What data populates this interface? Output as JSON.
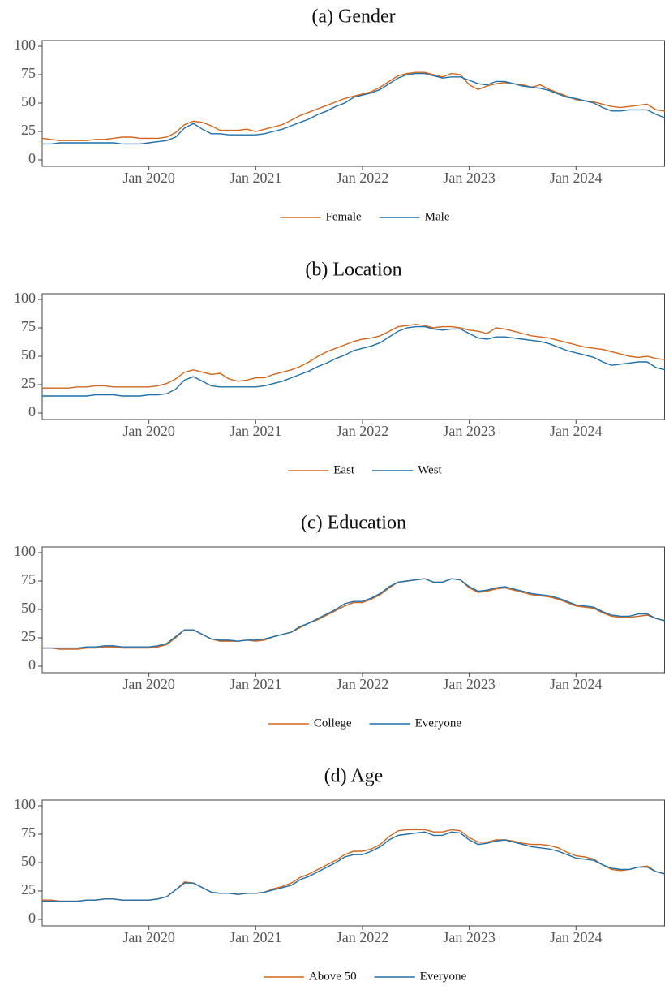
{
  "chart_data": [
    {
      "type": "line",
      "title": "(a) Gender",
      "x": [
        "2019-01",
        "2019-02",
        "2019-03",
        "2019-04",
        "2019-05",
        "2019-06",
        "2019-07",
        "2019-08",
        "2019-09",
        "2019-10",
        "2019-11",
        "2019-12",
        "2020-01",
        "2020-02",
        "2020-03",
        "2020-04",
        "2020-05",
        "2020-06",
        "2020-07",
        "2020-08",
        "2020-09",
        "2020-10",
        "2020-11",
        "2020-12",
        "2021-01",
        "2021-02",
        "2021-03",
        "2021-04",
        "2021-05",
        "2021-06",
        "2021-07",
        "2021-08",
        "2021-09",
        "2021-10",
        "2021-11",
        "2021-12",
        "2022-01",
        "2022-02",
        "2022-03",
        "2022-04",
        "2022-05",
        "2022-06",
        "2022-07",
        "2022-08",
        "2022-09",
        "2022-10",
        "2022-11",
        "2022-12",
        "2023-01",
        "2023-02",
        "2023-03",
        "2023-04",
        "2023-05",
        "2023-06",
        "2023-07",
        "2023-08",
        "2023-09",
        "2023-10",
        "2023-11",
        "2023-12",
        "2024-01",
        "2024-02",
        "2024-03",
        "2024-04",
        "2024-05",
        "2024-06",
        "2024-07",
        "2024-08",
        "2024-09",
        "2024-10",
        "2024-11"
      ],
      "xlim": [
        "2019-01",
        "2024-11"
      ],
      "xticks": [
        {
          "value": "2020-01",
          "label": "Jan 2020"
        },
        {
          "value": "2021-01",
          "label": "Jan 2021"
        },
        {
          "value": "2022-01",
          "label": "Jan 2022"
        },
        {
          "value": "2023-01",
          "label": "Jan 2023"
        },
        {
          "value": "2024-01",
          "label": "Jan 2024"
        }
      ],
      "ylim": [
        0,
        100
      ],
      "yticks": [
        0,
        25,
        50,
        75,
        100
      ],
      "legend": "bottom",
      "series": [
        {
          "name": "Female",
          "color": "#d1661c",
          "values": [
            19,
            18,
            17,
            17,
            17,
            17,
            18,
            18,
            19,
            20,
            20,
            19,
            19,
            19,
            20,
            24,
            31,
            34,
            33,
            30,
            26,
            26,
            26,
            27,
            25,
            27,
            29,
            31,
            35,
            39,
            42,
            45,
            48,
            51,
            54,
            56,
            58,
            60,
            64,
            69,
            74,
            76,
            77,
            77,
            75,
            73,
            76,
            75,
            66,
            62,
            65,
            67,
            68,
            67,
            66,
            64,
            66,
            62,
            59,
            56,
            53,
            52,
            51,
            49,
            47,
            46,
            47,
            48,
            49,
            44,
            43
          ]
        },
        {
          "name": "Male",
          "color": "#1f6fa8",
          "values": [
            14,
            14,
            15,
            15,
            15,
            15,
            15,
            15,
            15,
            14,
            14,
            14,
            15,
            16,
            17,
            20,
            28,
            32,
            27,
            23,
            23,
            22,
            22,
            22,
            22,
            23,
            25,
            27,
            30,
            33,
            36,
            40,
            43,
            47,
            50,
            55,
            57,
            59,
            62,
            67,
            72,
            75,
            76,
            76,
            74,
            72,
            73,
            73,
            70,
            67,
            66,
            69,
            69,
            67,
            65,
            64,
            63,
            61,
            58,
            55,
            54,
            52,
            50,
            46,
            43,
            43,
            44,
            44,
            44,
            40,
            37
          ]
        }
      ]
    },
    {
      "type": "line",
      "title": "(b) Location",
      "x": [
        "2019-01",
        "2019-02",
        "2019-03",
        "2019-04",
        "2019-05",
        "2019-06",
        "2019-07",
        "2019-08",
        "2019-09",
        "2019-10",
        "2019-11",
        "2019-12",
        "2020-01",
        "2020-02",
        "2020-03",
        "2020-04",
        "2020-05",
        "2020-06",
        "2020-07",
        "2020-08",
        "2020-09",
        "2020-10",
        "2020-11",
        "2020-12",
        "2021-01",
        "2021-02",
        "2021-03",
        "2021-04",
        "2021-05",
        "2021-06",
        "2021-07",
        "2021-08",
        "2021-09",
        "2021-10",
        "2021-11",
        "2021-12",
        "2022-01",
        "2022-02",
        "2022-03",
        "2022-04",
        "2022-05",
        "2022-06",
        "2022-07",
        "2022-08",
        "2022-09",
        "2022-10",
        "2022-11",
        "2022-12",
        "2023-01",
        "2023-02",
        "2023-03",
        "2023-04",
        "2023-05",
        "2023-06",
        "2023-07",
        "2023-08",
        "2023-09",
        "2023-10",
        "2023-11",
        "2023-12",
        "2024-01",
        "2024-02",
        "2024-03",
        "2024-04",
        "2024-05",
        "2024-06",
        "2024-07",
        "2024-08",
        "2024-09",
        "2024-10",
        "2024-11"
      ],
      "xlim": [
        "2019-01",
        "2024-11"
      ],
      "xticks": [
        {
          "value": "2020-01",
          "label": "Jan 2020"
        },
        {
          "value": "2021-01",
          "label": "Jan 2021"
        },
        {
          "value": "2022-01",
          "label": "Jan 2022"
        },
        {
          "value": "2023-01",
          "label": "Jan 2023"
        },
        {
          "value": "2024-01",
          "label": "Jan 2024"
        }
      ],
      "ylim": [
        0,
        100
      ],
      "yticks": [
        0,
        25,
        50,
        75,
        100
      ],
      "legend": "bottom",
      "series": [
        {
          "name": "East",
          "color": "#d1661c",
          "values": [
            22,
            22,
            22,
            22,
            23,
            23,
            24,
            24,
            23,
            23,
            23,
            23,
            23,
            24,
            26,
            30,
            36,
            38,
            36,
            34,
            35,
            30,
            28,
            29,
            31,
            31,
            34,
            36,
            38,
            41,
            45,
            50,
            54,
            57,
            60,
            63,
            65,
            66,
            68,
            72,
            76,
            77,
            78,
            77,
            75,
            76,
            76,
            75,
            73,
            72,
            70,
            75,
            74,
            72,
            70,
            68,
            67,
            66,
            64,
            62,
            60,
            58,
            57,
            56,
            54,
            52,
            50,
            49,
            50,
            48,
            47
          ]
        },
        {
          "name": "West",
          "color": "#1f6fa8",
          "values": [
            15,
            15,
            15,
            15,
            15,
            15,
            16,
            16,
            16,
            15,
            15,
            15,
            16,
            16,
            17,
            21,
            29,
            32,
            28,
            24,
            23,
            23,
            23,
            23,
            23,
            24,
            26,
            28,
            31,
            34,
            37,
            41,
            44,
            48,
            51,
            55,
            57,
            59,
            62,
            67,
            72,
            75,
            76,
            76,
            74,
            73,
            74,
            74,
            70,
            66,
            65,
            67,
            67,
            66,
            65,
            64,
            63,
            61,
            58,
            55,
            53,
            51,
            49,
            45,
            42,
            43,
            44,
            45,
            45,
            40,
            38
          ]
        }
      ]
    },
    {
      "type": "line",
      "title": "(c) Education",
      "x": [
        "2019-01",
        "2019-02",
        "2019-03",
        "2019-04",
        "2019-05",
        "2019-06",
        "2019-07",
        "2019-08",
        "2019-09",
        "2019-10",
        "2019-11",
        "2019-12",
        "2020-01",
        "2020-02",
        "2020-03",
        "2020-04",
        "2020-05",
        "2020-06",
        "2020-07",
        "2020-08",
        "2020-09",
        "2020-10",
        "2020-11",
        "2020-12",
        "2021-01",
        "2021-02",
        "2021-03",
        "2021-04",
        "2021-05",
        "2021-06",
        "2021-07",
        "2021-08",
        "2021-09",
        "2021-10",
        "2021-11",
        "2021-12",
        "2022-01",
        "2022-02",
        "2022-03",
        "2022-04",
        "2022-05",
        "2022-06",
        "2022-07",
        "2022-08",
        "2022-09",
        "2022-10",
        "2022-11",
        "2022-12",
        "2023-01",
        "2023-02",
        "2023-03",
        "2023-04",
        "2023-05",
        "2023-06",
        "2023-07",
        "2023-08",
        "2023-09",
        "2023-10",
        "2023-11",
        "2023-12",
        "2024-01",
        "2024-02",
        "2024-03",
        "2024-04",
        "2024-05",
        "2024-06",
        "2024-07",
        "2024-08",
        "2024-09",
        "2024-10",
        "2024-11"
      ],
      "xlim": [
        "2019-01",
        "2024-11"
      ],
      "xticks": [
        {
          "value": "2020-01",
          "label": "Jan 2020"
        },
        {
          "value": "2021-01",
          "label": "Jan 2021"
        },
        {
          "value": "2022-01",
          "label": "Jan 2022"
        },
        {
          "value": "2023-01",
          "label": "Jan 2023"
        },
        {
          "value": "2024-01",
          "label": "Jan 2024"
        }
      ],
      "ylim": [
        0,
        100
      ],
      "yticks": [
        0,
        25,
        50,
        75,
        100
      ],
      "legend": "bottom",
      "series": [
        {
          "name": "College",
          "color": "#d1661c",
          "values": [
            16,
            16,
            15,
            15,
            15,
            16,
            16,
            17,
            17,
            16,
            16,
            16,
            16,
            17,
            19,
            25,
            32,
            32,
            28,
            24,
            22,
            22,
            22,
            23,
            22,
            23,
            26,
            28,
            30,
            34,
            38,
            41,
            45,
            49,
            53,
            56,
            56,
            59,
            63,
            69,
            74,
            75,
            76,
            77,
            74,
            74,
            77,
            76,
            69,
            65,
            66,
            68,
            69,
            67,
            65,
            63,
            62,
            61,
            59,
            56,
            53,
            52,
            51,
            47,
            44,
            43,
            43,
            44,
            45,
            42,
            40
          ]
        },
        {
          "name": "Everyone",
          "color": "#1f6fa8",
          "values": [
            16,
            16,
            16,
            16,
            16,
            17,
            17,
            18,
            18,
            17,
            17,
            17,
            17,
            18,
            20,
            26,
            32,
            32,
            28,
            24,
            23,
            23,
            22,
            23,
            23,
            24,
            26,
            28,
            30,
            35,
            38,
            42,
            46,
            50,
            55,
            57,
            57,
            60,
            64,
            70,
            74,
            75,
            76,
            77,
            74,
            74,
            77,
            76,
            70,
            66,
            67,
            69,
            70,
            68,
            66,
            64,
            63,
            62,
            60,
            57,
            54,
            53,
            52,
            48,
            45,
            44,
            44,
            46,
            46,
            42,
            40
          ]
        }
      ]
    },
    {
      "type": "line",
      "title": "(d) Age",
      "x": [
        "2019-01",
        "2019-02",
        "2019-03",
        "2019-04",
        "2019-05",
        "2019-06",
        "2019-07",
        "2019-08",
        "2019-09",
        "2019-10",
        "2019-11",
        "2019-12",
        "2020-01",
        "2020-02",
        "2020-03",
        "2020-04",
        "2020-05",
        "2020-06",
        "2020-07",
        "2020-08",
        "2020-09",
        "2020-10",
        "2020-11",
        "2020-12",
        "2021-01",
        "2021-02",
        "2021-03",
        "2021-04",
        "2021-05",
        "2021-06",
        "2021-07",
        "2021-08",
        "2021-09",
        "2021-10",
        "2021-11",
        "2021-12",
        "2022-01",
        "2022-02",
        "2022-03",
        "2022-04",
        "2022-05",
        "2022-06",
        "2022-07",
        "2022-08",
        "2022-09",
        "2022-10",
        "2022-11",
        "2022-12",
        "2023-01",
        "2023-02",
        "2023-03",
        "2023-04",
        "2023-05",
        "2023-06",
        "2023-07",
        "2023-08",
        "2023-09",
        "2023-10",
        "2023-11",
        "2023-12",
        "2024-01",
        "2024-02",
        "2024-03",
        "2024-04",
        "2024-05",
        "2024-06",
        "2024-07",
        "2024-08",
        "2024-09",
        "2024-10",
        "2024-11"
      ],
      "xlim": [
        "2019-01",
        "2024-11"
      ],
      "xticks": [
        {
          "value": "2020-01",
          "label": "Jan 2020"
        },
        {
          "value": "2021-01",
          "label": "Jan 2021"
        },
        {
          "value": "2022-01",
          "label": "Jan 2022"
        },
        {
          "value": "2023-01",
          "label": "Jan 2023"
        },
        {
          "value": "2024-01",
          "label": "Jan 2024"
        }
      ],
      "ylim": [
        0,
        100
      ],
      "yticks": [
        0,
        25,
        50,
        75,
        100
      ],
      "legend": "bottom",
      "series": [
        {
          "name": "Above 50",
          "color": "#d1661c",
          "values": [
            17,
            17,
            16,
            16,
            16,
            17,
            17,
            18,
            18,
            17,
            17,
            17,
            17,
            18,
            20,
            26,
            33,
            32,
            28,
            24,
            23,
            23,
            22,
            23,
            23,
            24,
            27,
            29,
            32,
            37,
            40,
            44,
            48,
            52,
            57,
            60,
            60,
            62,
            66,
            73,
            78,
            79,
            79,
            79,
            77,
            77,
            79,
            78,
            72,
            68,
            68,
            70,
            70,
            69,
            67,
            66,
            66,
            65,
            63,
            59,
            56,
            55,
            53,
            48,
            44,
            43,
            44,
            46,
            47,
            42,
            40
          ]
        },
        {
          "name": "Everyone",
          "color": "#1f6fa8",
          "values": [
            16,
            16,
            16,
            16,
            16,
            17,
            17,
            18,
            18,
            17,
            17,
            17,
            17,
            18,
            20,
            26,
            32,
            32,
            28,
            24,
            23,
            23,
            22,
            23,
            23,
            24,
            26,
            28,
            30,
            35,
            38,
            42,
            46,
            50,
            55,
            57,
            57,
            60,
            64,
            70,
            74,
            75,
            76,
            77,
            74,
            74,
            77,
            76,
            70,
            66,
            67,
            69,
            70,
            68,
            66,
            64,
            63,
            62,
            60,
            57,
            54,
            53,
            52,
            48,
            45,
            44,
            44,
            46,
            46,
            42,
            40
          ]
        }
      ]
    }
  ]
}
